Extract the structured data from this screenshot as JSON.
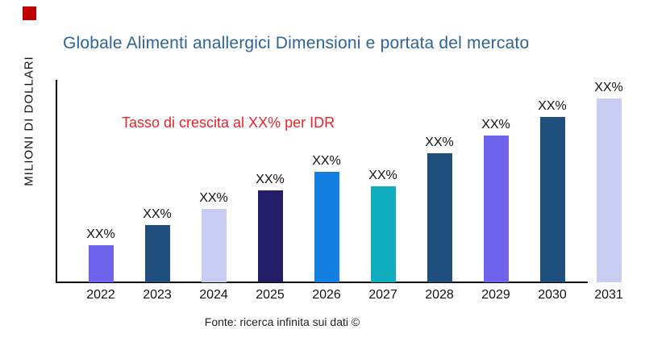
{
  "header": {
    "logo_color": "#c00000",
    "title": "Globale Alimenti anallergici Dimensioni e portata del mercato",
    "title_color": "#2e6496"
  },
  "chart_data": {
    "type": "bar",
    "title": "Globale Alimenti anallergici Dimensioni e portata del mercato",
    "xlabel": "",
    "ylabel": "MILIONI DI DOLLARI",
    "categories": [
      "2022",
      "2023",
      "2024",
      "2025",
      "2026",
      "2027",
      "2028",
      "2029",
      "2030",
      "2031"
    ],
    "values_relative_pct_of_max": [
      20,
      31,
      40,
      50,
      60,
      52,
      70,
      80,
      90,
      100
    ],
    "bar_value_labels": [
      "XX%",
      "XX%",
      "XX%",
      "XX%",
      "XX%",
      "XX%",
      "XX%",
      "XX%",
      "XX%",
      "XX%"
    ],
    "bar_colors": [
      "#6f63ec",
      "#204f7e",
      "#c9ccf1",
      "#231c67",
      "#147fe3",
      "#11adbe",
      "#204f7e",
      "#6f63ec",
      "#204f7e",
      "#c9ccf1"
    ],
    "annotation": {
      "text": "Tasso di crescita al XX% per IDR",
      "color": "#e3262c"
    },
    "axis_color": "#000000",
    "grid": false,
    "legend": false
  },
  "footer": {
    "source": "Fonte: ricerca infinita sui dati ©"
  }
}
